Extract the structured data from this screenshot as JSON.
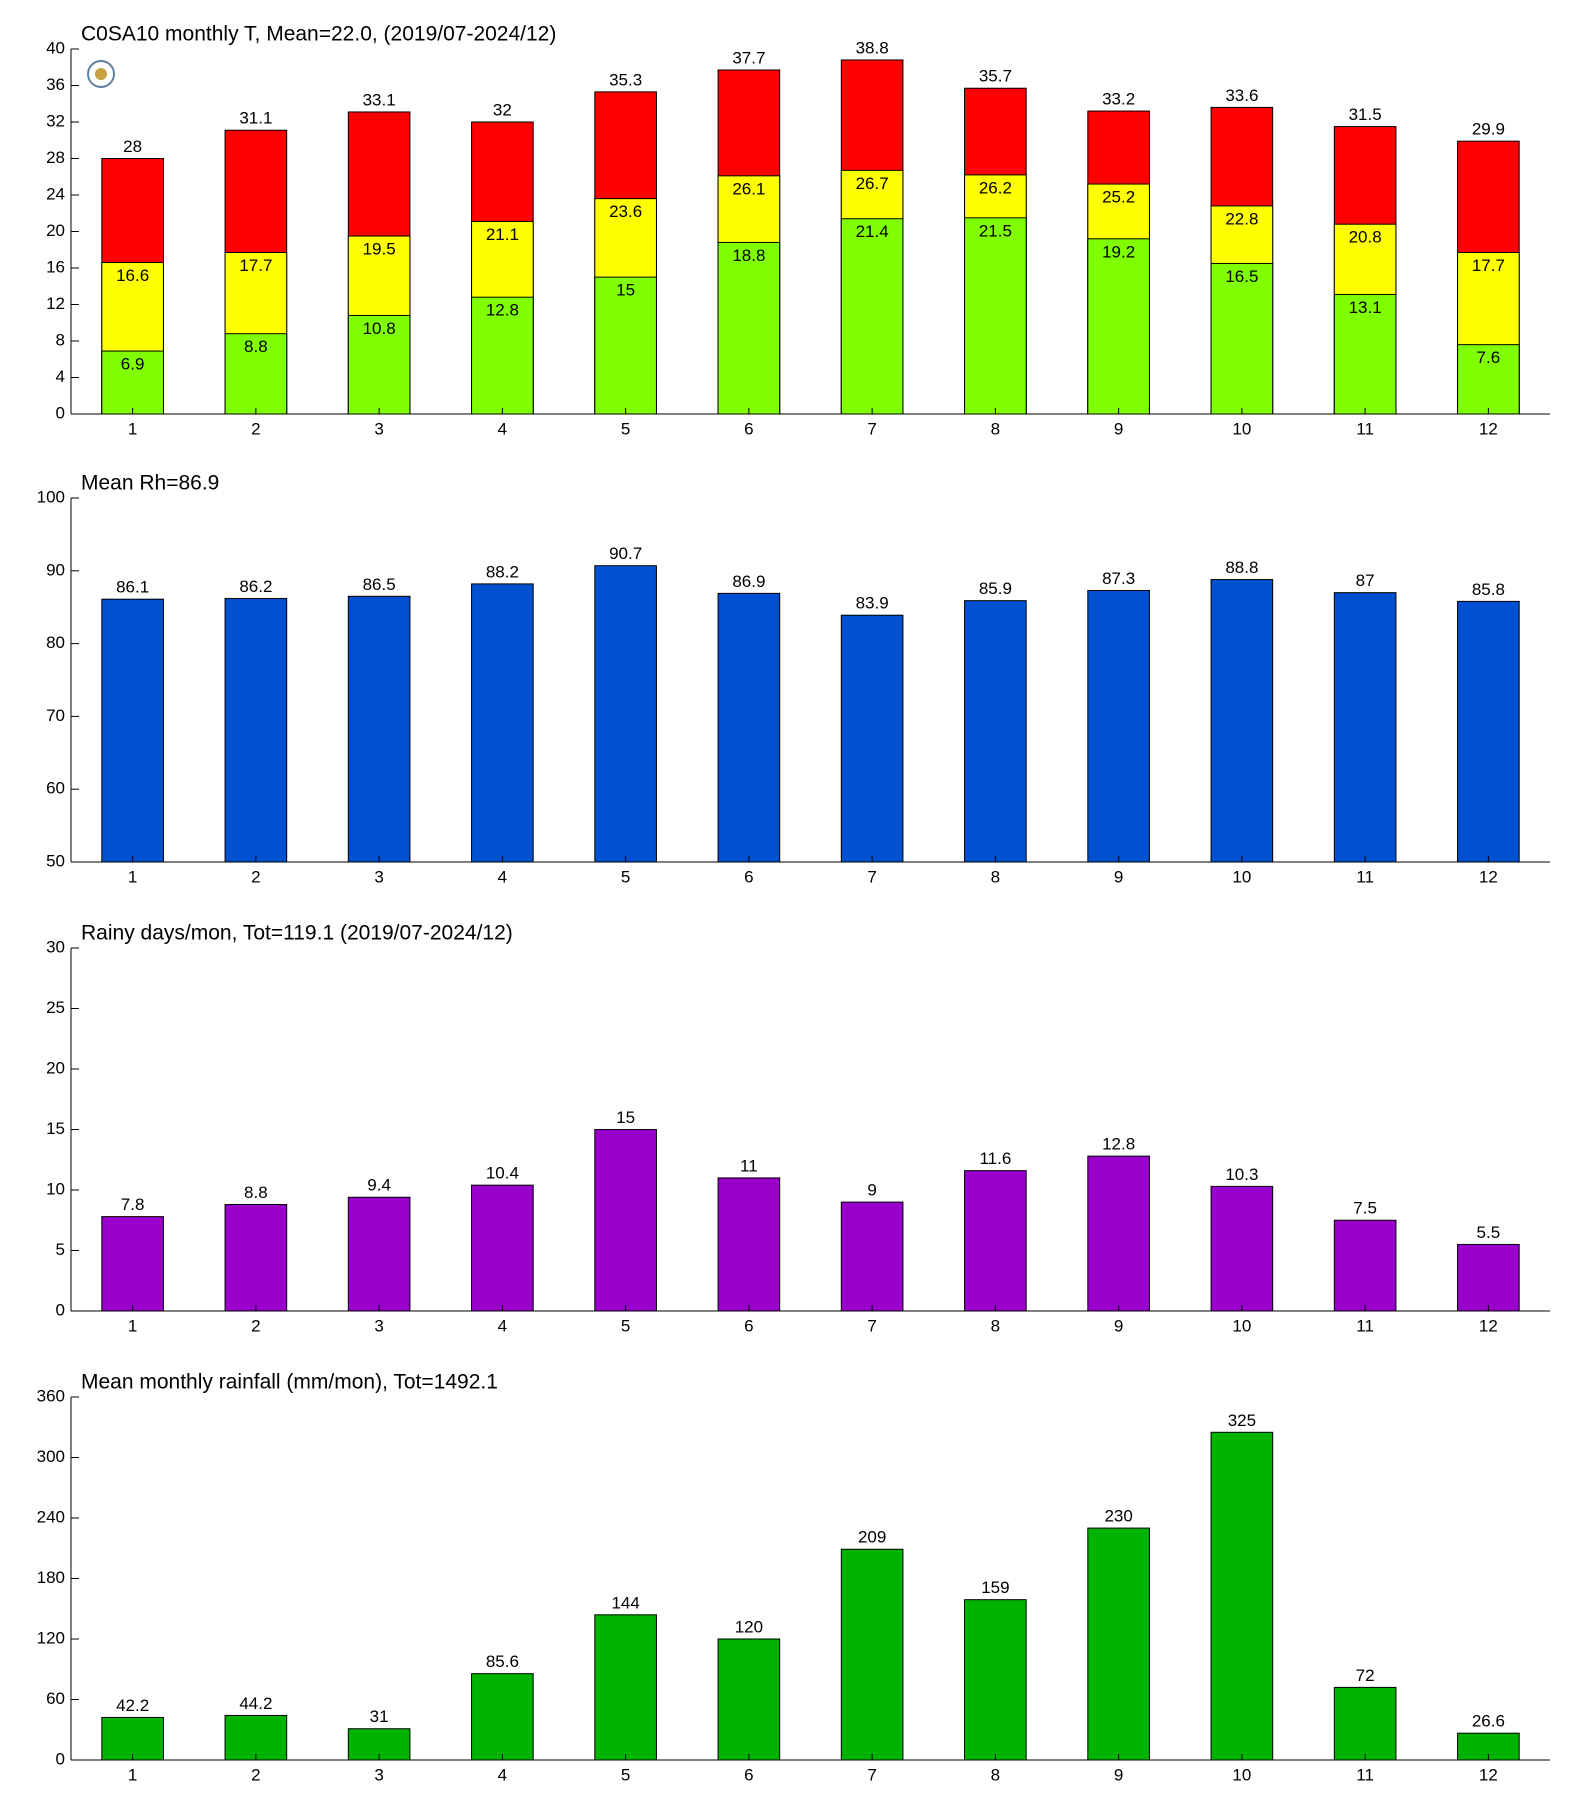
{
  "chart_data": [
    {
      "type": "bar",
      "barmode": "overlay",
      "title": "C0SA10 monthly T, Mean=22.0, (2019/07-2024/12)",
      "categories": [
        "1",
        "2",
        "3",
        "4",
        "5",
        "6",
        "7",
        "8",
        "9",
        "10",
        "11",
        "12"
      ],
      "series": [
        {
          "color": "#ff0000",
          "values": [
            28,
            31.1,
            33.1,
            32,
            35.3,
            37.7,
            38.8,
            35.7,
            33.2,
            33.6,
            31.5,
            29.9
          ]
        },
        {
          "color": "#ffff00",
          "values": [
            16.6,
            17.7,
            19.5,
            21.1,
            23.6,
            26.1,
            26.7,
            26.2,
            25.2,
            22.8,
            20.8,
            17.7
          ]
        },
        {
          "color": "#80ff00",
          "values": [
            6.9,
            8.8,
            10.8,
            12.8,
            15,
            18.8,
            21.4,
            21.5,
            19.2,
            16.5,
            13.1,
            7.6
          ]
        }
      ],
      "ylim": [
        0,
        40
      ],
      "yticks": [
        0,
        4,
        8,
        12,
        16,
        20,
        24,
        28,
        32,
        36,
        40
      ]
    },
    {
      "type": "bar",
      "title": "Mean Rh=86.9",
      "categories": [
        "1",
        "2",
        "3",
        "4",
        "5",
        "6",
        "7",
        "8",
        "9",
        "10",
        "11",
        "12"
      ],
      "series": [
        {
          "color": "#0050d0",
          "values": [
            86.1,
            86.2,
            86.5,
            88.2,
            90.7,
            86.9,
            83.9,
            85.9,
            87.3,
            88.8,
            87,
            85.8
          ]
        }
      ],
      "ylim": [
        50,
        100
      ],
      "yticks": [
        50,
        60,
        70,
        80,
        90,
        100
      ]
    },
    {
      "type": "bar",
      "title": "Rainy days/mon, Tot=119.1 (2019/07-2024/12)",
      "categories": [
        "1",
        "2",
        "3",
        "4",
        "5",
        "6",
        "7",
        "8",
        "9",
        "10",
        "11",
        "12"
      ],
      "series": [
        {
          "color": "#9900cc",
          "values": [
            7.8,
            8.8,
            9.4,
            10.4,
            15,
            11,
            9,
            11.6,
            12.8,
            10.3,
            7.5,
            5.5
          ]
        }
      ],
      "ylim": [
        0,
        30
      ],
      "yticks": [
        0,
        5,
        10,
        15,
        20,
        25,
        30
      ]
    },
    {
      "type": "bar",
      "title": "Mean monthly rainfall (mm/mon), Tot=1492.1",
      "categories": [
        "1",
        "2",
        "3",
        "4",
        "5",
        "6",
        "7",
        "8",
        "9",
        "10",
        "11",
        "12"
      ],
      "series": [
        {
          "color": "#00b300",
          "values": [
            42.2,
            44.2,
            31,
            85.6,
            144,
            120,
            209,
            159,
            230,
            325,
            72,
            26.6
          ]
        }
      ],
      "ylim": [
        0,
        360
      ],
      "yticks": [
        0,
        60,
        120,
        180,
        240,
        300,
        360
      ]
    }
  ]
}
